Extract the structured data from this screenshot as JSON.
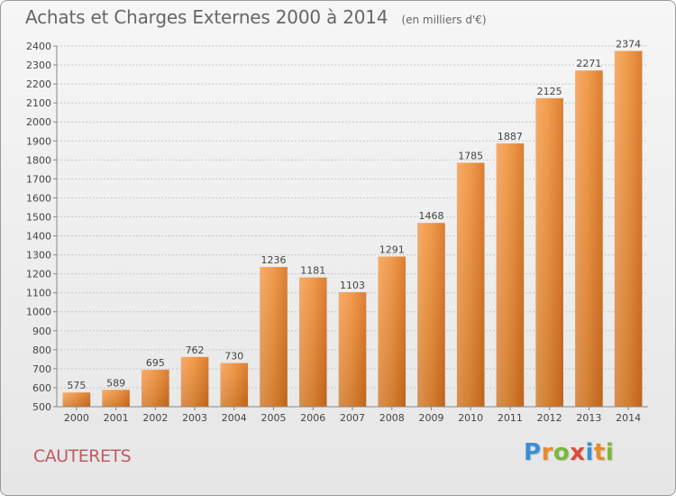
{
  "chart_data": {
    "type": "bar",
    "title": "Achats et Charges Externes 2000 à 2014",
    "subtitle": "(en milliers d'€)",
    "categories": [
      "2000",
      "2001",
      "2002",
      "2003",
      "2004",
      "2005",
      "2006",
      "2007",
      "2008",
      "2009",
      "2010",
      "2011",
      "2012",
      "2013",
      "2014"
    ],
    "values": [
      575,
      589,
      695,
      762,
      730,
      1236,
      1181,
      1103,
      1291,
      1468,
      1785,
      1887,
      2125,
      2271,
      2374
    ],
    "ylim": [
      500,
      2400
    ],
    "ytick_step": 100,
    "grid": true,
    "bar_color": "#f0913a"
  },
  "commune": "CAUTERETS",
  "logo": {
    "letters": [
      "P",
      "r",
      "o",
      "x",
      "i",
      "t",
      "i"
    ],
    "colors": [
      "#3a8fd6",
      "#e8892b",
      "#7bb83a",
      "#e04a3a",
      "#3a8fd6",
      "#e8892b",
      "#7bb83a"
    ]
  }
}
